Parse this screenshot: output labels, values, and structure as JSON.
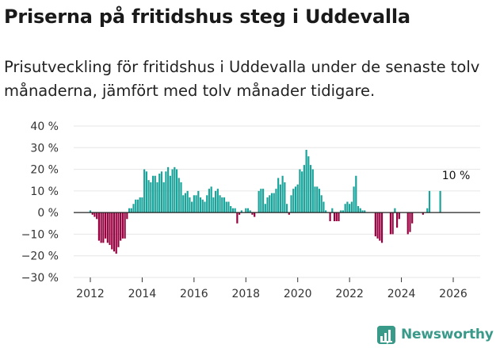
{
  "header": {
    "title": "Priserna på fritidshus steg i Uddevalla",
    "subtitle": "Prisutveckling för fritidshus i Uddevalla under de senaste tolv månaderna, jämfört med tolv månader tidigare."
  },
  "brand": {
    "name": "Newsworthy"
  },
  "colors": {
    "positive": "#1aa39a",
    "negative": "#96003f",
    "grid": "#e6e6e6",
    "zero": "#222222",
    "text": "#333333"
  },
  "chart_data": {
    "type": "bar",
    "title": "Priserna på fritidshus steg i Uddevalla",
    "xlabel": "",
    "ylabel": "",
    "ylim": [
      -30,
      40
    ],
    "xlim": [
      2011.0,
      2026.8
    ],
    "y_ticks": [
      40,
      30,
      20,
      10,
      0,
      -10,
      -20,
      -30
    ],
    "y_tick_labels": [
      "40 %",
      "30 %",
      "20 %",
      "10 %",
      "0 %",
      "−10 %",
      "−20 %",
      "−30 %"
    ],
    "x_ticks": [
      2012,
      2014,
      2016,
      2018,
      2020,
      2022,
      2024,
      2026
    ],
    "x_tick_labels": [
      "2012",
      "2014",
      "2016",
      "2018",
      "2020",
      "2022",
      "2024",
      "2026"
    ],
    "annotation": {
      "text": "10 %",
      "x": 2026.17,
      "y": 10
    },
    "series": [
      {
        "name": "Prisutveckling",
        "start": 2012.0,
        "step": 0.08333,
        "values": [
          1,
          -1,
          -2,
          -3,
          -13,
          -14,
          -14,
          -12,
          -14,
          -15,
          -17,
          -18,
          -19,
          -16,
          -13,
          -12,
          -12,
          -3,
          2,
          2,
          4,
          6,
          6,
          7,
          7,
          20,
          19,
          15,
          14,
          17,
          17,
          14,
          18,
          19,
          14,
          19,
          21,
          17,
          20,
          21,
          20,
          16,
          14,
          8,
          9,
          10,
          7,
          5,
          8,
          8,
          10,
          7,
          6,
          5,
          8,
          11,
          12,
          7,
          10,
          11,
          8,
          7,
          7,
          5,
          5,
          3,
          2,
          2,
          -5,
          -1,
          1,
          0,
          2,
          2,
          1,
          -1,
          -2,
          0,
          10,
          11,
          11,
          4,
          7,
          8,
          9,
          9,
          11,
          16,
          13,
          17,
          14,
          4,
          -1,
          8,
          11,
          12,
          13,
          20,
          19,
          22,
          29,
          26,
          22,
          20,
          12,
          12,
          11,
          8,
          5,
          1,
          0,
          -4,
          2,
          -4,
          -4,
          -4,
          1,
          1,
          4,
          5,
          4,
          5,
          12,
          17,
          3,
          2,
          1,
          1,
          0,
          0,
          0,
          0,
          -11,
          -12,
          -13,
          -14,
          0,
          0,
          0,
          -10,
          -10,
          2,
          -7,
          -3,
          0,
          0,
          0,
          -10,
          -9,
          -5,
          0,
          0,
          0,
          0,
          -1,
          0,
          2,
          10,
          0,
          0,
          0,
          0,
          10
        ]
      }
    ]
  }
}
